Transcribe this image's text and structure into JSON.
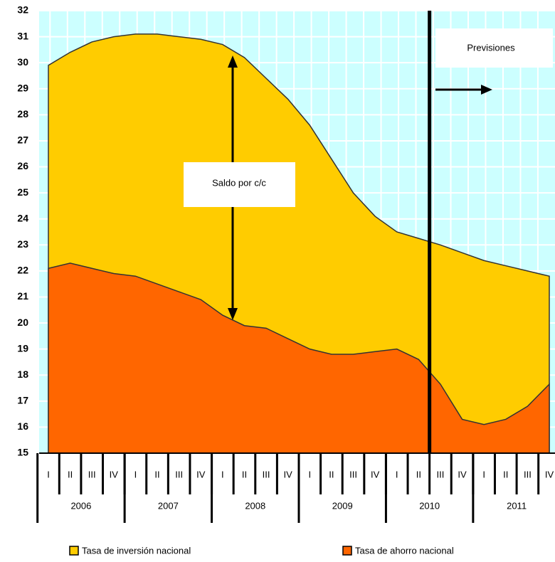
{
  "chart_data": {
    "type": "area",
    "categories": [
      "I",
      "II",
      "III",
      "IV",
      "I",
      "II",
      "III",
      "IV",
      "I",
      "II",
      "III",
      "IV",
      "I",
      "II",
      "III",
      "IV",
      "I",
      "II",
      "III",
      "IV",
      "I",
      "II",
      "III",
      "IV"
    ],
    "year_labels": [
      "2006",
      "2007",
      "2008",
      "2009",
      "2010",
      "2011"
    ],
    "series": [
      {
        "name": "Tasa de inversión nacional",
        "color": "#ffcc00",
        "values": [
          29.9,
          30.4,
          30.8,
          31.0,
          31.1,
          31.1,
          31.0,
          30.9,
          30.7,
          30.2,
          29.4,
          28.6,
          27.6,
          26.3,
          25.0,
          24.1,
          23.5,
          23.25,
          23.0,
          22.7,
          22.4,
          22.2,
          22.0,
          21.8
        ]
      },
      {
        "name": "Tasa de ahorro nacional",
        "color": "#ff6600",
        "values": [
          22.1,
          22.3,
          22.1,
          21.9,
          21.8,
          21.5,
          21.2,
          20.9,
          20.3,
          19.9,
          19.8,
          19.4,
          19.0,
          18.8,
          18.8,
          18.9,
          19.0,
          18.6,
          17.65,
          16.3,
          16.1,
          16.3,
          16.8,
          17.65
        ]
      }
    ],
    "ylim": [
      15,
      32
    ],
    "yticks": [
      15,
      16,
      17,
      18,
      19,
      20,
      21,
      22,
      23,
      24,
      25,
      26,
      27,
      28,
      29,
      30,
      31,
      32
    ],
    "grid": true,
    "annotations": [
      "Saldo por c/c",
      "Previsiones"
    ]
  }
}
